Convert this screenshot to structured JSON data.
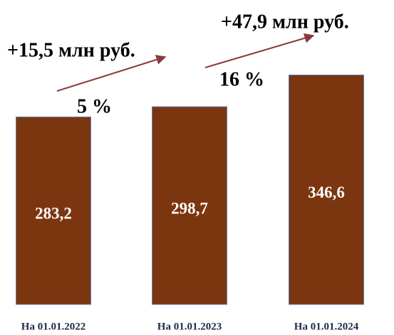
{
  "chart_data": {
    "type": "bar",
    "categories": [
      "На 01.01.2022",
      "На 01.01.2023",
      "На 01.01.2024"
    ],
    "values": [
      283.2,
      298.7,
      346.6
    ],
    "value_labels": [
      "283,2",
      "298,7",
      "346,6"
    ],
    "color": "#7b3610",
    "ylim": [
      0,
      360
    ],
    "annotations": [
      "+15,5 млн руб.",
      "+47,9 млн руб.",
      "5 %",
      "16 %"
    ]
  }
}
